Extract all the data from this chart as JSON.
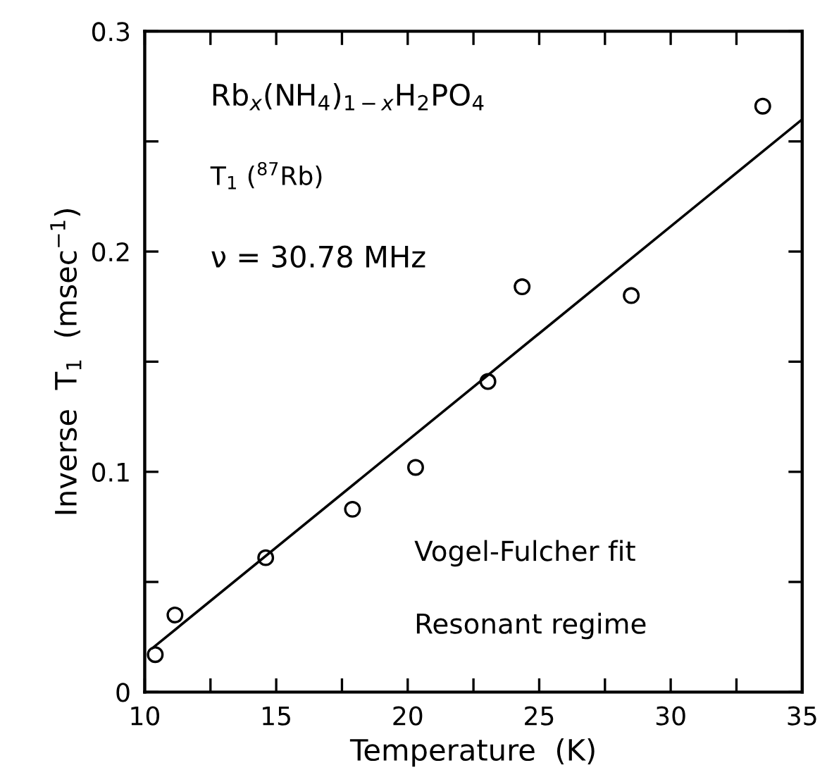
{
  "chart_data": {
    "type": "scatter",
    "xlabel": "Temperature  (K)",
    "ylabel": "Inverse  T$_{1}$  (msec$^{−1}$)",
    "xlim": [
      10,
      35
    ],
    "ylim": [
      0,
      0.3
    ],
    "xticks": [
      10,
      {
        "value": 12.5,
        "label": null
      },
      15,
      {
        "value": 17.5,
        "label": null
      },
      20,
      {
        "value": 22.5,
        "label": null
      },
      25,
      {
        "value": 27.5,
        "label": null
      },
      30,
      {
        "value": 32.5,
        "label": null
      },
      35
    ],
    "yticks": [
      0,
      {
        "value": 0.05,
        "label": null
      },
      0.1,
      {
        "value": 0.15,
        "label": null
      },
      0.2,
      {
        "value": 0.25,
        "label": null
      },
      0.3
    ],
    "grid": false,
    "legend": false,
    "series": [
      {
        "color": "#000000",
        "marker": "circle",
        "x": [
          10.4,
          11.15,
          14.6,
          17.9,
          20.3,
          23.05,
          24.35,
          28.5,
          33.5
        ],
        "values": [
          0.017,
          0.035,
          0.061,
          0.083,
          0.102,
          0.141,
          0.184,
          0.18,
          0.266
        ]
      },
      {
        "type": "line",
        "color": "#000000",
        "marker": "none",
        "line_style": "solid",
        "x": [
          10.3,
          35
        ],
        "values": [
          0.02,
          0.26
        ]
      }
    ],
    "annotations": [
      "Rb$_{x}$(NH$_{4}$)$_{1−x}$H$_{2}$PO$_{4}$",
      "T$_{1}$ ($^{87}$Rb)",
      "ν = 30.78 MHz",
      "Vogel-Fulcher fit",
      "Resonant regime"
    ]
  }
}
